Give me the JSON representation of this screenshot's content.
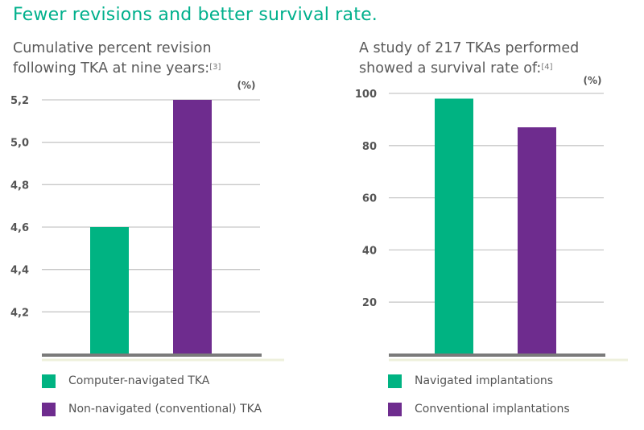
{
  "headline": "Fewer revisions and better survival rate.",
  "colors": {
    "accent": "#00b08c",
    "green": "#00b382",
    "purple": "#6e2c8e",
    "grid": "#c8c8c8",
    "axis": "#7a7a7a"
  },
  "left": {
    "subtitle": "Cumulative percent revision following TKA at nine years:",
    "ref": "[3]"
  },
  "right": {
    "subtitle": "A study of 217 TKAs performed showed a survival rate of:",
    "ref": "[4]"
  },
  "chart_data": [
    {
      "type": "bar",
      "title": "Cumulative percent revision following TKA at nine years:",
      "ylabel": "(%)",
      "xlabel": "",
      "ylim": [
        4.0,
        5.2
      ],
      "yticks": [
        "4,2",
        "4,4",
        "4,6",
        "4,8",
        "5,0",
        "5,2"
      ],
      "ytick_values": [
        4.2,
        4.4,
        4.6,
        4.8,
        5.0,
        5.2
      ],
      "categories": [
        "Computer-navigated TKA",
        "Non-navigated (conventional) TKA"
      ],
      "values": [
        4.6,
        5.2
      ],
      "colors": [
        "#00b382",
        "#6e2c8e"
      ],
      "legend": [
        "Computer-navigated TKA",
        "Non-navigated (conventional) TKA"
      ],
      "legend_position": "bottom"
    },
    {
      "type": "bar",
      "title": "A study of 217 TKAs performed showed a survival rate of:",
      "ylabel": "(%)",
      "xlabel": "",
      "ylim": [
        0,
        100
      ],
      "yticks": [
        "20",
        "40",
        "60",
        "80",
        "100"
      ],
      "ytick_values": [
        20,
        40,
        60,
        80,
        100
      ],
      "categories": [
        "Navigated implantations",
        "Conventional implantations"
      ],
      "values": [
        98,
        87
      ],
      "colors": [
        "#00b382",
        "#6e2c8e"
      ],
      "legend": [
        "Navigated implantations",
        "Conventional implantations"
      ],
      "legend_position": "bottom"
    }
  ]
}
